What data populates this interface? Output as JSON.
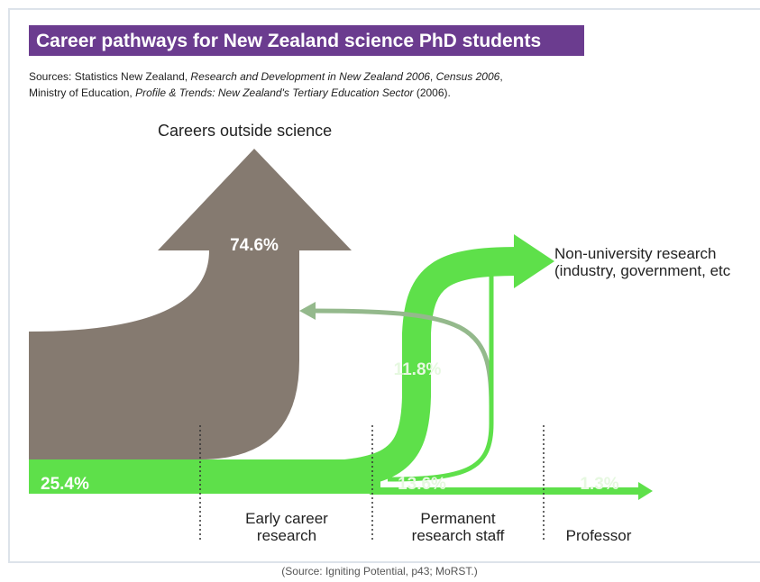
{
  "title": "Career pathways for New Zealand science PhD students",
  "sources": [
    [
      {
        "text": "Sources: Statistics New Zealand, ",
        "italic": false
      },
      {
        "text": "Research and Development in New Zealand 2006",
        "italic": true
      },
      {
        "text": ", ",
        "italic": false
      },
      {
        "text": "Census 2006",
        "italic": true
      },
      {
        "text": ",",
        "italic": false
      }
    ],
    [
      {
        "text": "Ministry of Education, ",
        "italic": false
      },
      {
        "text": "Profile & Trends: New Zealand's Tertiary Education Sector",
        "italic": true
      },
      {
        "text": " (2006).",
        "italic": false
      }
    ]
  ],
  "flows": {
    "outside": {
      "label": "Careers outside science",
      "share": "74.6%"
    },
    "start": {
      "share": "25.4%"
    },
    "early_to_nonuni": {
      "share": "11.8%"
    },
    "permanent": {
      "share": "13.6%"
    },
    "professor": {
      "share": "1.3%"
    },
    "nonuni": {
      "label": [
        "Non-university research",
        "(industry, government, etc"
      ]
    }
  },
  "stages": [
    [
      "Early career",
      "research"
    ],
    [
      "Permanent",
      "research staff"
    ],
    [
      "Professor"
    ]
  ],
  "caption": "(Source: Igniting Potential, p43; MoRST.)"
}
